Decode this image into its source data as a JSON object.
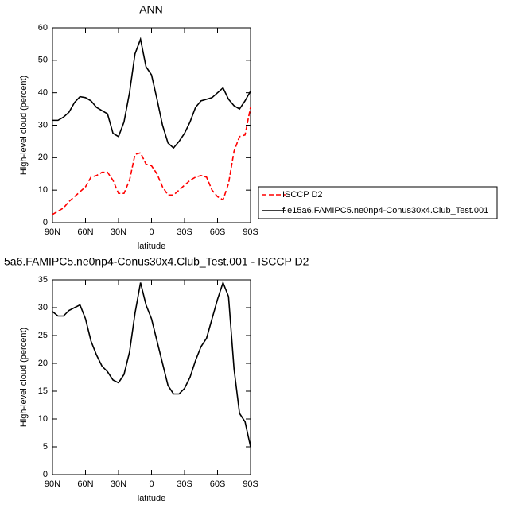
{
  "chart_data": [
    {
      "type": "line",
      "title": "ANN",
      "xlabel": "latitude",
      "ylabel": "High-level cloud (percent)",
      "x": [
        90,
        85,
        80,
        75,
        70,
        65,
        60,
        55,
        50,
        45,
        40,
        35,
        30,
        25,
        20,
        15,
        10,
        5,
        0,
        -5,
        -10,
        -15,
        -20,
        -25,
        -30,
        -35,
        -40,
        -45,
        -50,
        -55,
        -60,
        -65,
        -70,
        -75,
        -80,
        -85,
        -90
      ],
      "series": [
        {
          "name": "ISCCP D2",
          "color": "#ff0000",
          "line_style": "dashed",
          "values": [
            2.5,
            3.5,
            4.5,
            6.5,
            8,
            9.5,
            11,
            14,
            14.5,
            15.5,
            15.5,
            13,
            9,
            9,
            13,
            21,
            21.5,
            18,
            17.5,
            15,
            11,
            8.5,
            8.5,
            10,
            11.5,
            13,
            14,
            14.5,
            14,
            10,
            8,
            7,
            12,
            22,
            26.5,
            27,
            35.5
          ]
        },
        {
          "name": "f.e15a6.FAMIPC5.ne0np4-Conus30x4.Club_Test.001",
          "color": "#000000",
          "line_style": "solid",
          "values": [
            31.5,
            31.5,
            32.5,
            34,
            37,
            38.8,
            38.5,
            37.5,
            35.5,
            34.5,
            33.5,
            27.5,
            26.5,
            31,
            40,
            52,
            56.5,
            48,
            45.5,
            38,
            30,
            24.5,
            23,
            25,
            27.5,
            31,
            35.5,
            37.5,
            38,
            38.5,
            40,
            41.5,
            38,
            36,
            35,
            37.5,
            40.5
          ]
        }
      ],
      "xlim": [
        90,
        -90
      ],
      "xticks": [
        {
          "value": 90,
          "label": "90N"
        },
        {
          "value": 60,
          "label": "60N"
        },
        {
          "value": 30,
          "label": "30N"
        },
        {
          "value": 0,
          "label": "0"
        },
        {
          "value": -30,
          "label": "30S"
        },
        {
          "value": -60,
          "label": "60S"
        },
        {
          "value": -90,
          "label": "90S"
        }
      ],
      "ylim": [
        0,
        60
      ],
      "yticks": [
        0,
        10,
        20,
        30,
        40,
        50,
        60
      ],
      "legend": "right"
    },
    {
      "type": "line",
      "title": "5a6.FAMIPC5.ne0np4-Conus30x4.Club_Test.001 - ISCCP D2",
      "xlabel": "latitude",
      "ylabel": "High-level cloud (percent)",
      "x": [
        90,
        85,
        80,
        75,
        70,
        65,
        60,
        55,
        50,
        45,
        40,
        35,
        30,
        25,
        20,
        15,
        10,
        5,
        0,
        -5,
        -10,
        -15,
        -20,
        -25,
        -30,
        -35,
        -40,
        -45,
        -50,
        -55,
        -60,
        -65,
        -70,
        -75,
        -80,
        -85,
        -90
      ],
      "series": [
        {
          "color": "#000000",
          "line_style": "solid",
          "values": [
            29.3,
            28.5,
            28.5,
            29.5,
            30,
            30.5,
            28,
            24,
            21.5,
            19.5,
            18.5,
            17,
            16.5,
            18,
            22,
            29,
            34.5,
            30.5,
            28,
            24,
            20,
            16,
            14.5,
            14.5,
            15.5,
            17.5,
            20.5,
            23,
            24.5,
            28,
            31.5,
            34.5,
            32,
            19,
            11,
            9.5,
            5
          ]
        }
      ],
      "xlim": [
        90,
        -90
      ],
      "xticks": [
        {
          "value": 90,
          "label": "90N"
        },
        {
          "value": 60,
          "label": "60N"
        },
        {
          "value": 30,
          "label": "30N"
        },
        {
          "value": 0,
          "label": "0"
        },
        {
          "value": -30,
          "label": "30S"
        },
        {
          "value": -60,
          "label": "60S"
        },
        {
          "value": -90,
          "label": "90S"
        }
      ],
      "ylim": [
        0,
        35
      ],
      "yticks": [
        0,
        5,
        10,
        15,
        20,
        25,
        30,
        35
      ]
    }
  ]
}
